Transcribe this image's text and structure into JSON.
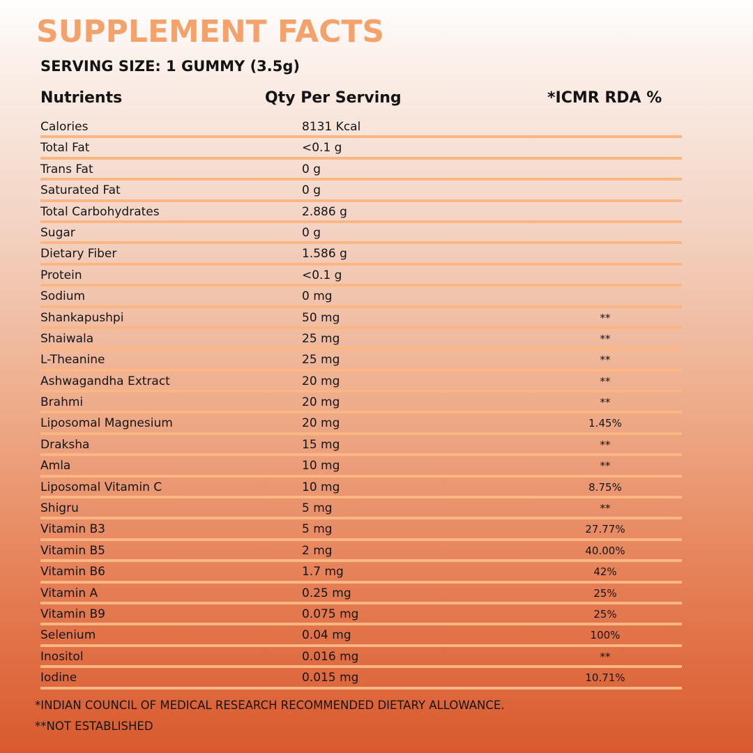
{
  "title": "SUPPLEMENT FACTS",
  "serving_size": "SERVING SIZE: 1 GUMMY (3.5g)",
  "columns": {
    "nutrients": "Nutrients",
    "qty": "Qty Per Serving",
    "rda": "*ICMR RDA %"
  },
  "rows": [
    {
      "name": "Calories",
      "qty": "8131 Kcal",
      "rda": ""
    },
    {
      "name": "Total Fat",
      "qty": "<0.1 g",
      "rda": ""
    },
    {
      "name": "Trans Fat",
      "qty": "0 g",
      "rda": ""
    },
    {
      "name": "Saturated Fat",
      "qty": "0 g",
      "rda": ""
    },
    {
      "name": "Total Carbohydrates",
      "qty": "2.886 g",
      "rda": ""
    },
    {
      "name": "Sugar",
      "qty": "0 g",
      "rda": ""
    },
    {
      "name": "Dietary Fiber",
      "qty": "1.586 g",
      "rda": ""
    },
    {
      "name": "Protein",
      "qty": "<0.1 g",
      "rda": ""
    },
    {
      "name": "Sodium",
      "qty": "0 mg",
      "rda": ""
    },
    {
      "name": "Shankapushpi",
      "qty": "50 mg",
      "rda": "**"
    },
    {
      "name": "Shaiwala",
      "qty": "25 mg",
      "rda": "**"
    },
    {
      "name": "L-Theanine",
      "qty": "25 mg",
      "rda": "**"
    },
    {
      "name": "Ashwagandha Extract",
      "qty": "20 mg",
      "rda": "**"
    },
    {
      "name": "Brahmi",
      "qty": "20 mg",
      "rda": "**"
    },
    {
      "name": "Liposomal Magnesium",
      "qty": "20 mg",
      "rda": "1.45%"
    },
    {
      "name": "Draksha",
      "qty": "15 mg",
      "rda": "**"
    },
    {
      "name": "Amla",
      "qty": "10 mg",
      "rda": "**"
    },
    {
      "name": "Liposomal Vitamin C",
      "qty": "10 mg",
      "rda": "8.75%"
    },
    {
      "name": "Shigru",
      "qty": "5 mg",
      "rda": "**"
    },
    {
      "name": "Vitamin B3",
      "qty": "5 mg",
      "rda": "27.77%"
    },
    {
      "name": "Vitamin B5",
      "qty": "2 mg",
      "rda": "40.00%"
    },
    {
      "name": "Vitamin B6",
      "qty": "1.7 mg",
      "rda": "42%"
    },
    {
      "name": "Vitamin A",
      "qty": "0.25 mg",
      "rda": "25%"
    },
    {
      "name": "Vitamin B9",
      "qty": "0.075 mg",
      "rda": "25%"
    },
    {
      "name": "Selenium",
      "qty": "0.04 mg",
      "rda": "100%"
    },
    {
      "name": "Inositol",
      "qty": "0.016 mg",
      "rda": "**"
    },
    {
      "name": "Iodine",
      "qty": "0.015 mg",
      "rda": "10.71%"
    }
  ],
  "footnotes": [
    "*INDIAN COUNCIL OF MEDICAL RESEARCH RECOMMENDED DIETARY ALLOWANCE.",
    "**NOT ESTABLISHED"
  ],
  "colors": {
    "title": "#f4a26b",
    "row_line": "#fbb684",
    "text": "#141414"
  }
}
